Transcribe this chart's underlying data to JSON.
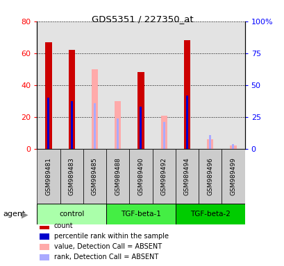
{
  "title": "GDS5351 / 227350_at",
  "samples": [
    "GSM989481",
    "GSM989483",
    "GSM989485",
    "GSM989488",
    "GSM989490",
    "GSM989492",
    "GSM989494",
    "GSM989496",
    "GSM989499"
  ],
  "groups": [
    {
      "label": "control",
      "indices": [
        0,
        1,
        2
      ],
      "color": "#aaffaa"
    },
    {
      "label": "TGF-beta-1",
      "indices": [
        3,
        4,
        5
      ],
      "color": "#44ee44"
    },
    {
      "label": "TGF-beta-2",
      "indices": [
        6,
        7,
        8
      ],
      "color": "#00cc00"
    }
  ],
  "count_values": [
    67,
    62,
    0,
    0,
    48,
    0,
    68,
    0,
    0
  ],
  "percentile_values": [
    40,
    37.5,
    0,
    0,
    33,
    0,
    42,
    0,
    0
  ],
  "absent_value_values": [
    0,
    0,
    50,
    30,
    0,
    21,
    0,
    6,
    2
  ],
  "absent_rank_values": [
    0,
    0,
    36,
    24,
    0,
    21,
    0,
    11,
    4
  ],
  "left_ylim": [
    0,
    80
  ],
  "right_ylim": [
    0,
    100
  ],
  "left_yticks": [
    0,
    20,
    40,
    60,
    80
  ],
  "right_yticks": [
    0,
    25,
    50,
    75,
    100
  ],
  "right_yticklabels": [
    "0",
    "25",
    "50",
    "75",
    "100%"
  ],
  "count_color": "#cc0000",
  "percentile_color": "#0000cc",
  "absent_value_color": "#ffaaaa",
  "absent_rank_color": "#aaaaff",
  "sample_bg_color": "#cccccc",
  "legend_items": [
    {
      "color": "#cc0000",
      "label": "count"
    },
    {
      "color": "#0000cc",
      "label": "percentile rank within the sample"
    },
    {
      "color": "#ffaaaa",
      "label": "value, Detection Call = ABSENT"
    },
    {
      "color": "#aaaaff",
      "label": "rank, Detection Call = ABSENT"
    }
  ]
}
